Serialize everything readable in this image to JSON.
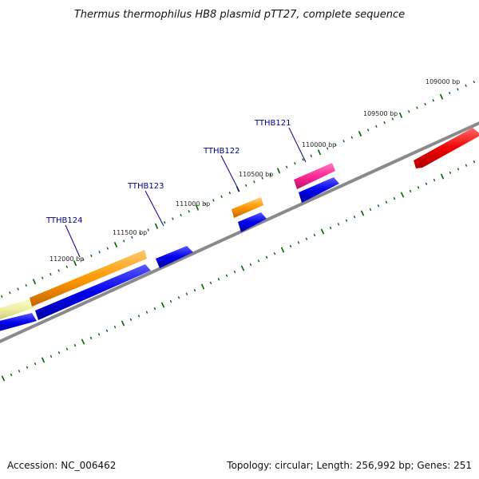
{
  "title": "Thermus thermophilus HB8 plasmid pTT27, complete sequence",
  "accession_text": "Accession: NC_006462",
  "summary_text": "Topology: circular; Length: 256,992 bp; Genes: 251",
  "colors": {
    "backbone": "#808080",
    "tick": "#006400",
    "gene_label": "#00008b",
    "forward_cds": "#0000ee",
    "orange_feature": "#ff9900",
    "pale_feature": "#eeeea0",
    "magenta_feature": "#ff1493",
    "red_feature": "#ee0000"
  },
  "position_labels": [
    {
      "bp": 109000,
      "text": "109000 bp"
    },
    {
      "bp": 109500,
      "text": "109500 bp"
    },
    {
      "bp": 110000,
      "text": "110000 bp"
    },
    {
      "bp": 110500,
      "text": "110500 bp"
    },
    {
      "bp": 111000,
      "text": "111000 bp"
    },
    {
      "bp": 111500,
      "text": "111500 bp"
    },
    {
      "bp": 112000,
      "text": "112000 bp"
    }
  ],
  "genes": [
    {
      "name": "TTHB121"
    },
    {
      "name": "TTHB122"
    },
    {
      "name": "TTHB123"
    },
    {
      "name": "TTHB124"
    }
  ]
}
